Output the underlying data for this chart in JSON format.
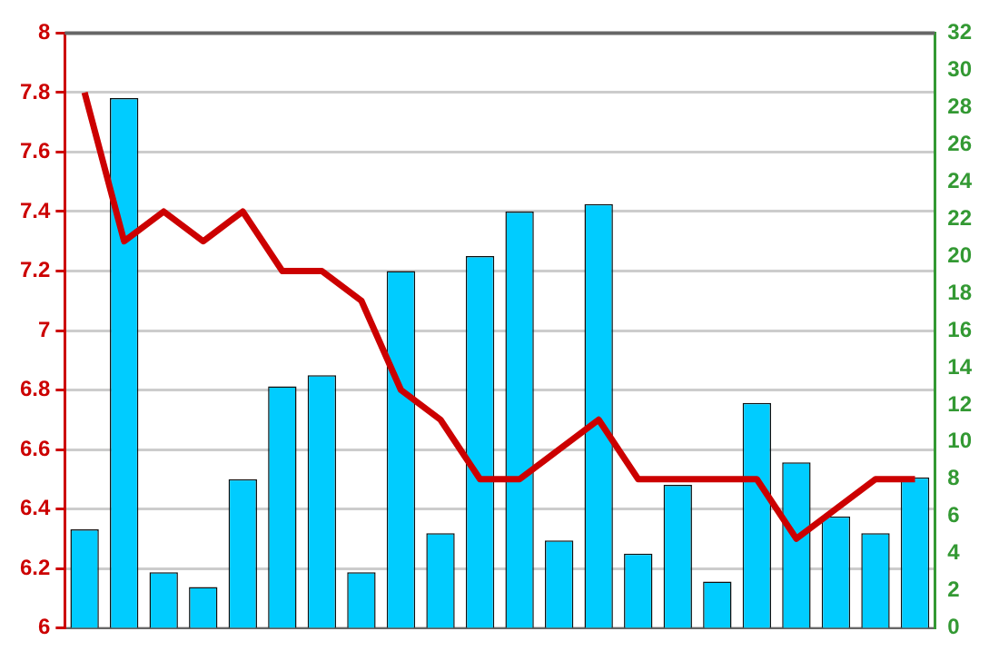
{
  "chart_data": {
    "type": "bar",
    "categories": [
      null,
      null,
      null,
      null,
      null,
      null,
      null,
      null,
      null,
      null,
      null,
      null,
      null,
      null,
      null,
      null,
      null,
      null,
      null,
      null,
      null,
      null
    ],
    "series": [
      {
        "axis": "y2",
        "color": "#00ccff",
        "values": [
          5.3,
          28.5,
          3.0,
          2.2,
          8.0,
          13.0,
          13.6,
          3.0,
          19.2,
          5.1,
          20.0,
          22.4,
          4.7,
          22.8,
          4.0,
          7.7,
          2.5,
          12.1,
          8.9,
          6.0,
          5.1,
          8.1
        ]
      },
      {
        "type": "line",
        "color": "#cc0000",
        "values": [
          7.8,
          7.3,
          7.4,
          7.3,
          7.4,
          7.2,
          7.2,
          7.1,
          6.8,
          6.7,
          6.5,
          6.5,
          6.6,
          6.7,
          6.5,
          6.5,
          6.5,
          6.5,
          6.3,
          6.4,
          6.5,
          6.5
        ]
      }
    ],
    "ylim": [
      6,
      8
    ],
    "yticks": [
      6,
      6.2,
      6.4,
      6.6,
      6.8,
      7,
      7.2,
      7.4,
      7.6,
      7.8,
      8
    ],
    "y2lim": [
      0,
      32
    ],
    "y2ticks": [
      0,
      2,
      4,
      6,
      8,
      10,
      12,
      14,
      16,
      18,
      20,
      22,
      24,
      26,
      28,
      30,
      32
    ],
    "grid": "y",
    "legend": false,
    "marker": "none",
    "line_style": "solid"
  }
}
